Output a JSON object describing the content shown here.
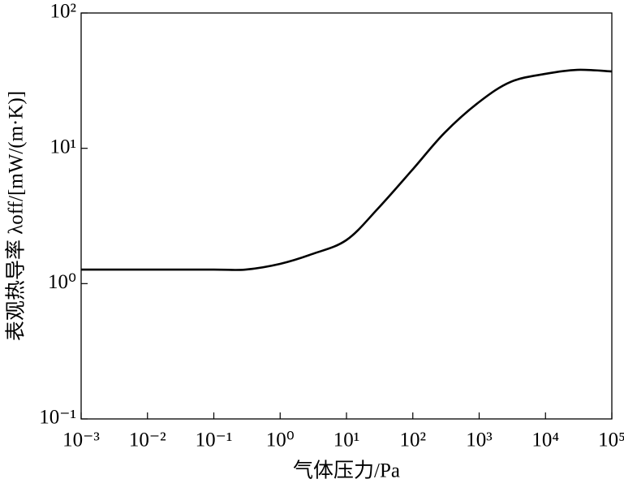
{
  "chart_data": {
    "type": "line",
    "xlabel": "气体压力/Pa",
    "ylabel": "表观热导率 λoff/[mW/(m·K)]",
    "x": [
      0.001,
      0.01,
      0.1,
      0.3,
      1,
      3,
      10,
      30,
      100,
      300,
      1000,
      3000,
      10000,
      30000,
      100000
    ],
    "values": [
      1.27,
      1.27,
      1.27,
      1.27,
      1.4,
      1.65,
      2.1,
      3.6,
      7,
      13,
      22,
      31,
      35.5,
      38,
      37
    ],
    "color": "#000000",
    "xscale": "log",
    "yscale": "log",
    "xlim": [
      0.001,
      100000
    ],
    "ylim": [
      0.1,
      100
    ],
    "xticks": [
      {
        "value": 0.001,
        "label": "10⁻³"
      },
      {
        "value": 0.01,
        "label": "10⁻²"
      },
      {
        "value": 0.1,
        "label": "10⁻¹"
      },
      {
        "value": 1,
        "label": "10⁰"
      },
      {
        "value": 10,
        "label": "10¹"
      },
      {
        "value": 100,
        "label": "10²"
      },
      {
        "value": 1000,
        "label": "10³"
      },
      {
        "value": 10000,
        "label": "10⁴"
      },
      {
        "value": 100000,
        "label": "10⁵"
      }
    ],
    "yticks": [
      {
        "value": 0.1,
        "label": "10⁻¹"
      },
      {
        "value": 1,
        "label": "10⁰"
      },
      {
        "value": 10,
        "label": "10¹"
      },
      {
        "value": 100,
        "label": "10²"
      }
    ],
    "grid": false
  }
}
